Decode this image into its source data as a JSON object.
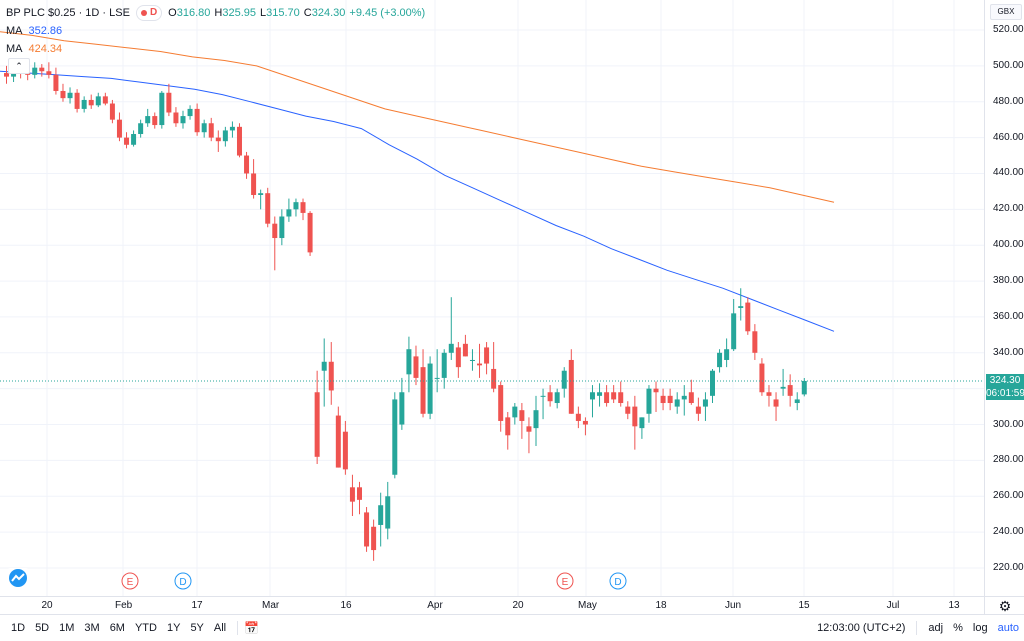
{
  "legend": {
    "symbol": "BP PLC $0.25",
    "interval": "1D",
    "exchange": "LSE",
    "badge_letter": "D",
    "open_label": "O",
    "open": "316.80",
    "high_label": "H",
    "high": "325.95",
    "low_label": "L",
    "low": "315.70",
    "close_label": "C",
    "close": "324.30",
    "change": "+9.45 (+3.00%)",
    "ma1_name": "MA",
    "ma1_value": "352.86",
    "ma2_name": "MA",
    "ma2_value": "424.34"
  },
  "currency": "GBX",
  "price_ticks": [
    "520.00",
    "500.00",
    "480.00",
    "460.00",
    "440.00",
    "420.00",
    "400.00",
    "380.00",
    "360.00",
    "340.00",
    "320.00",
    "300.00",
    "280.00",
    "260.00",
    "240.00",
    "220.00"
  ],
  "time_ticks": [
    "20",
    "Feb",
    "17",
    "Mar",
    "16",
    "Apr",
    "20",
    "May",
    "18",
    "Jun",
    "15",
    "Jul",
    "13"
  ],
  "last_price_tag": "324.30",
  "countdown_tag": "06:01:59",
  "markers": [
    {
      "letter": "E",
      "color": "#ef5350"
    },
    {
      "letter": "D",
      "color": "#2196f3"
    },
    {
      "letter": "E",
      "color": "#ef5350"
    },
    {
      "letter": "D",
      "color": "#2196f3"
    }
  ],
  "toolbar": {
    "ranges": [
      "1D",
      "5D",
      "1M",
      "3M",
      "6M",
      "YTD",
      "1Y",
      "5Y",
      "All"
    ],
    "time": "12:03:00 (UTC+2)",
    "adj": "adj",
    "percent": "%",
    "log": "log",
    "auto": "auto"
  },
  "colors": {
    "up": "#26a69a",
    "down": "#ef5350",
    "ma_short": "#2962ff",
    "ma_long": "#f57c32",
    "last_price_line": "#26a69a"
  },
  "chart_data": {
    "type": "candlestick",
    "ylim": [
      210,
      530
    ],
    "candles": [
      {
        "o": 496,
        "h": 500,
        "l": 490,
        "c": 494
      },
      {
        "o": 494,
        "h": 501,
        "l": 491,
        "c": 498
      },
      {
        "o": 498,
        "h": 502,
        "l": 493,
        "c": 496
      },
      {
        "o": 496,
        "h": 500,
        "l": 492,
        "c": 495
      },
      {
        "o": 495,
        "h": 502,
        "l": 493,
        "c": 499
      },
      {
        "o": 499,
        "h": 501,
        "l": 494,
        "c": 497
      },
      {
        "o": 497,
        "h": 502,
        "l": 493,
        "c": 495
      },
      {
        "o": 495,
        "h": 499,
        "l": 484,
        "c": 486
      },
      {
        "o": 486,
        "h": 490,
        "l": 480,
        "c": 482
      },
      {
        "o": 482,
        "h": 488,
        "l": 479,
        "c": 485
      },
      {
        "o": 485,
        "h": 487,
        "l": 474,
        "c": 476
      },
      {
        "o": 476,
        "h": 483,
        "l": 474,
        "c": 481
      },
      {
        "o": 481,
        "h": 484,
        "l": 476,
        "c": 478
      },
      {
        "o": 478,
        "h": 485,
        "l": 477,
        "c": 483
      },
      {
        "o": 483,
        "h": 485,
        "l": 478,
        "c": 479
      },
      {
        "o": 479,
        "h": 481,
        "l": 468,
        "c": 470
      },
      {
        "o": 470,
        "h": 474,
        "l": 458,
        "c": 460
      },
      {
        "o": 460,
        "h": 463,
        "l": 454,
        "c": 456
      },
      {
        "o": 456,
        "h": 464,
        "l": 455,
        "c": 462
      },
      {
        "o": 462,
        "h": 470,
        "l": 460,
        "c": 468
      },
      {
        "o": 468,
        "h": 476,
        "l": 466,
        "c": 472
      },
      {
        "o": 472,
        "h": 474,
        "l": 465,
        "c": 467
      },
      {
        "o": 467,
        "h": 486,
        "l": 465,
        "c": 485
      },
      {
        "o": 485,
        "h": 490,
        "l": 472,
        "c": 474
      },
      {
        "o": 474,
        "h": 477,
        "l": 466,
        "c": 468
      },
      {
        "o": 468,
        "h": 475,
        "l": 465,
        "c": 472
      },
      {
        "o": 472,
        "h": 478,
        "l": 470,
        "c": 476
      },
      {
        "o": 476,
        "h": 479,
        "l": 461,
        "c": 463
      },
      {
        "o": 463,
        "h": 470,
        "l": 460,
        "c": 468
      },
      {
        "o": 468,
        "h": 471,
        "l": 458,
        "c": 460
      },
      {
        "o": 460,
        "h": 464,
        "l": 452,
        "c": 458
      },
      {
        "o": 458,
        "h": 466,
        "l": 455,
        "c": 464
      },
      {
        "o": 464,
        "h": 469,
        "l": 460,
        "c": 466
      },
      {
        "o": 466,
        "h": 468,
        "l": 449,
        "c": 450
      },
      {
        "o": 450,
        "h": 452,
        "l": 437,
        "c": 440
      },
      {
        "o": 440,
        "h": 448,
        "l": 426,
        "c": 428
      },
      {
        "o": 428,
        "h": 431,
        "l": 420,
        "c": 429
      },
      {
        "o": 429,
        "h": 432,
        "l": 410,
        "c": 412
      },
      {
        "o": 412,
        "h": 416,
        "l": 386,
        "c": 404
      },
      {
        "o": 404,
        "h": 420,
        "l": 400,
        "c": 416
      },
      {
        "o": 416,
        "h": 426,
        "l": 413,
        "c": 420
      },
      {
        "o": 420,
        "h": 426,
        "l": 416,
        "c": 424
      },
      {
        "o": 424,
        "h": 426,
        "l": 414,
        "c": 418
      },
      {
        "o": 418,
        "h": 419,
        "l": 394,
        "c": 396
      },
      {
        "o": 318,
        "h": 330,
        "l": 278,
        "c": 282
      },
      {
        "o": 330,
        "h": 348,
        "l": 310,
        "c": 335
      },
      {
        "o": 335,
        "h": 346,
        "l": 311,
        "c": 319
      },
      {
        "o": 305,
        "h": 310,
        "l": 276,
        "c": 276
      },
      {
        "o": 296,
        "h": 302,
        "l": 272,
        "c": 275
      },
      {
        "o": 265,
        "h": 272,
        "l": 249,
        "c": 257
      },
      {
        "o": 265,
        "h": 268,
        "l": 250,
        "c": 258
      },
      {
        "o": 251,
        "h": 254,
        "l": 229,
        "c": 232
      },
      {
        "o": 243,
        "h": 247,
        "l": 224,
        "c": 230
      },
      {
        "o": 244,
        "h": 262,
        "l": 232,
        "c": 255
      },
      {
        "o": 242,
        "h": 268,
        "l": 236,
        "c": 260
      },
      {
        "o": 272,
        "h": 318,
        "l": 270,
        "c": 314
      },
      {
        "o": 300,
        "h": 326,
        "l": 297,
        "c": 318
      },
      {
        "o": 328,
        "h": 349,
        "l": 318,
        "c": 342
      },
      {
        "o": 338,
        "h": 344,
        "l": 322,
        "c": 326
      },
      {
        "o": 332,
        "h": 342,
        "l": 304,
        "c": 306
      },
      {
        "o": 306,
        "h": 338,
        "l": 303,
        "c": 334
      },
      {
        "o": 326,
        "h": 342,
        "l": 318,
        "c": 326
      },
      {
        "o": 326,
        "h": 342,
        "l": 320,
        "c": 340
      },
      {
        "o": 340,
        "h": 371,
        "l": 336,
        "c": 345
      },
      {
        "o": 343,
        "h": 346,
        "l": 326,
        "c": 332
      },
      {
        "o": 345,
        "h": 350,
        "l": 338,
        "c": 338
      },
      {
        "o": 336,
        "h": 342,
        "l": 330,
        "c": 336
      },
      {
        "o": 334,
        "h": 345,
        "l": 326,
        "c": 333
      },
      {
        "o": 343,
        "h": 346,
        "l": 328,
        "c": 334
      },
      {
        "o": 331,
        "h": 346,
        "l": 318,
        "c": 320
      },
      {
        "o": 322,
        "h": 324,
        "l": 296,
        "c": 302
      },
      {
        "o": 304,
        "h": 307,
        "l": 286,
        "c": 294
      },
      {
        "o": 304,
        "h": 312,
        "l": 300,
        "c": 310
      },
      {
        "o": 308,
        "h": 312,
        "l": 292,
        "c": 302
      },
      {
        "o": 299,
        "h": 304,
        "l": 284,
        "c": 296
      },
      {
        "o": 298,
        "h": 316,
        "l": 288,
        "c": 308
      },
      {
        "o": 316,
        "h": 320,
        "l": 303,
        "c": 316
      },
      {
        "o": 318,
        "h": 322,
        "l": 310,
        "c": 313
      },
      {
        "o": 312,
        "h": 320,
        "l": 309,
        "c": 318
      },
      {
        "o": 320,
        "h": 332,
        "l": 315,
        "c": 330
      },
      {
        "o": 336,
        "h": 342,
        "l": 306,
        "c": 306
      },
      {
        "o": 306,
        "h": 310,
        "l": 298,
        "c": 302
      },
      {
        "o": 302,
        "h": 304,
        "l": 294,
        "c": 300
      },
      {
        "o": 314,
        "h": 322,
        "l": 304,
        "c": 318
      },
      {
        "o": 316,
        "h": 323,
        "l": 310,
        "c": 318
      },
      {
        "o": 318,
        "h": 322,
        "l": 310,
        "c": 312
      },
      {
        "o": 318,
        "h": 322,
        "l": 312,
        "c": 314
      },
      {
        "o": 318,
        "h": 324,
        "l": 310,
        "c": 312
      },
      {
        "o": 310,
        "h": 313,
        "l": 303,
        "c": 306
      },
      {
        "o": 310,
        "h": 316,
        "l": 286,
        "c": 299
      },
      {
        "o": 298,
        "h": 304,
        "l": 292,
        "c": 304
      },
      {
        "o": 306,
        "h": 322,
        "l": 301,
        "c": 320
      },
      {
        "o": 320,
        "h": 324,
        "l": 307,
        "c": 318
      },
      {
        "o": 316,
        "h": 320,
        "l": 308,
        "c": 312
      },
      {
        "o": 316,
        "h": 320,
        "l": 308,
        "c": 312
      },
      {
        "o": 310,
        "h": 318,
        "l": 306,
        "c": 314
      },
      {
        "o": 314,
        "h": 322,
        "l": 305,
        "c": 316
      },
      {
        "o": 318,
        "h": 325,
        "l": 311,
        "c": 312
      },
      {
        "o": 310,
        "h": 315,
        "l": 302,
        "c": 306
      },
      {
        "o": 310,
        "h": 318,
        "l": 302,
        "c": 314
      },
      {
        "o": 316,
        "h": 331,
        "l": 312,
        "c": 330
      },
      {
        "o": 332,
        "h": 342,
        "l": 329,
        "c": 340
      },
      {
        "o": 336,
        "h": 348,
        "l": 332,
        "c": 342
      },
      {
        "o": 342,
        "h": 370,
        "l": 341,
        "c": 362
      },
      {
        "o": 365,
        "h": 376,
        "l": 358,
        "c": 366
      },
      {
        "o": 368,
        "h": 371,
        "l": 350,
        "c": 352
      },
      {
        "o": 352,
        "h": 356,
        "l": 336,
        "c": 340
      },
      {
        "o": 334,
        "h": 337,
        "l": 316,
        "c": 318
      },
      {
        "o": 318,
        "h": 322,
        "l": 310,
        "c": 316
      },
      {
        "o": 314,
        "h": 318,
        "l": 302,
        "c": 310
      },
      {
        "o": 320,
        "h": 331,
        "l": 316,
        "c": 321
      },
      {
        "o": 322,
        "h": 328,
        "l": 310,
        "c": 316
      },
      {
        "o": 312,
        "h": 318,
        "l": 308,
        "c": 314
      },
      {
        "o": 316.8,
        "h": 325.95,
        "l": 315.7,
        "c": 324.3
      }
    ],
    "ma_short": [
      497,
      496,
      495,
      494,
      493,
      491,
      489,
      487,
      484,
      480,
      476,
      472,
      469,
      465,
      456,
      448,
      439,
      432,
      425,
      418,
      411,
      405,
      398,
      392,
      386,
      381,
      376,
      370,
      364,
      358,
      352
    ],
    "ma_long": [
      519,
      517,
      514,
      512,
      510,
      508,
      505,
      503,
      500,
      494,
      488,
      482,
      476,
      472,
      468,
      464,
      460,
      456,
      452,
      448,
      444,
      441,
      438,
      435,
      432,
      428,
      424
    ]
  }
}
